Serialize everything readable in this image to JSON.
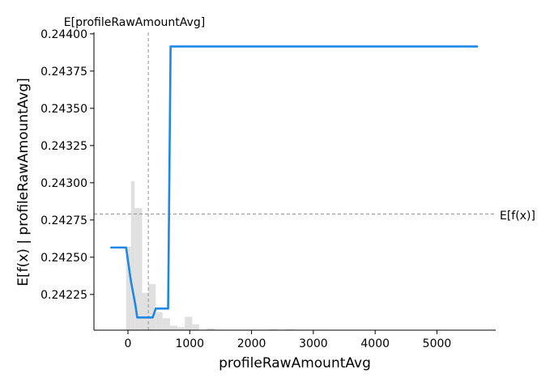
{
  "chart_data": {
    "type": "line",
    "title": "",
    "xlabel": "profileRawAmountAvg",
    "ylabel": "E[f(x) | profileRawAmountAvg]",
    "xlim": [
      -550,
      5950
    ],
    "ylim": [
      0.24201,
      0.24401
    ],
    "x_ticks": [
      0,
      1000,
      2000,
      3000,
      4000,
      5000
    ],
    "y_ticks": [
      0.24225,
      0.2425,
      0.24275,
      0.243,
      0.24325,
      0.2435,
      0.24375,
      0.244
    ],
    "grid": false,
    "series": [
      {
        "color": "#1e88e5",
        "x": [
          -270,
          -30,
          50,
          120,
          150,
          200,
          280,
          300,
          400,
          450,
          620,
          650,
          690,
          850,
          1500,
          3000,
          4500,
          5650
        ],
        "y": [
          0.242565,
          0.242565,
          0.242335,
          0.24218,
          0.242095,
          0.242095,
          0.242095,
          0.242095,
          0.242095,
          0.242155,
          0.242155,
          0.242155,
          0.243915,
          0.243915,
          0.243915,
          0.243915,
          0.243915,
          0.243915
        ]
      }
    ],
    "histogram": {
      "color": "#e0e0e0",
      "bins": [
        {
          "x0": -30,
          "x1": 50,
          "count": 0.28
        },
        {
          "x0": 50,
          "x1": 110,
          "count": 0.5
        },
        {
          "x0": 110,
          "x1": 230,
          "count": 0.41
        },
        {
          "x0": 230,
          "x1": 330,
          "count": 0.125
        },
        {
          "x0": 330,
          "x1": 450,
          "count": 0.155
        },
        {
          "x0": 450,
          "x1": 560,
          "count": 0.06
        },
        {
          "x0": 560,
          "x1": 680,
          "count": 0.04
        },
        {
          "x0": 680,
          "x1": 800,
          "count": 0.015
        },
        {
          "x0": 800,
          "x1": 920,
          "count": 0.01
        },
        {
          "x0": 920,
          "x1": 1040,
          "count": 0.045
        },
        {
          "x0": 1040,
          "x1": 1150,
          "count": 0.02
        },
        {
          "x0": 1280,
          "x1": 1400,
          "count": 0.006
        },
        {
          "x0": 2300,
          "x1": 2420,
          "count": 0.003
        },
        {
          "x0": 2560,
          "x1": 2680,
          "count": 0.003
        }
      ]
    },
    "reference_lines": {
      "vertical": {
        "x": 330,
        "label": "E[profileRawAmountAvg]"
      },
      "horizontal": {
        "y": 0.24279,
        "label": "E[f(x)]"
      }
    }
  }
}
